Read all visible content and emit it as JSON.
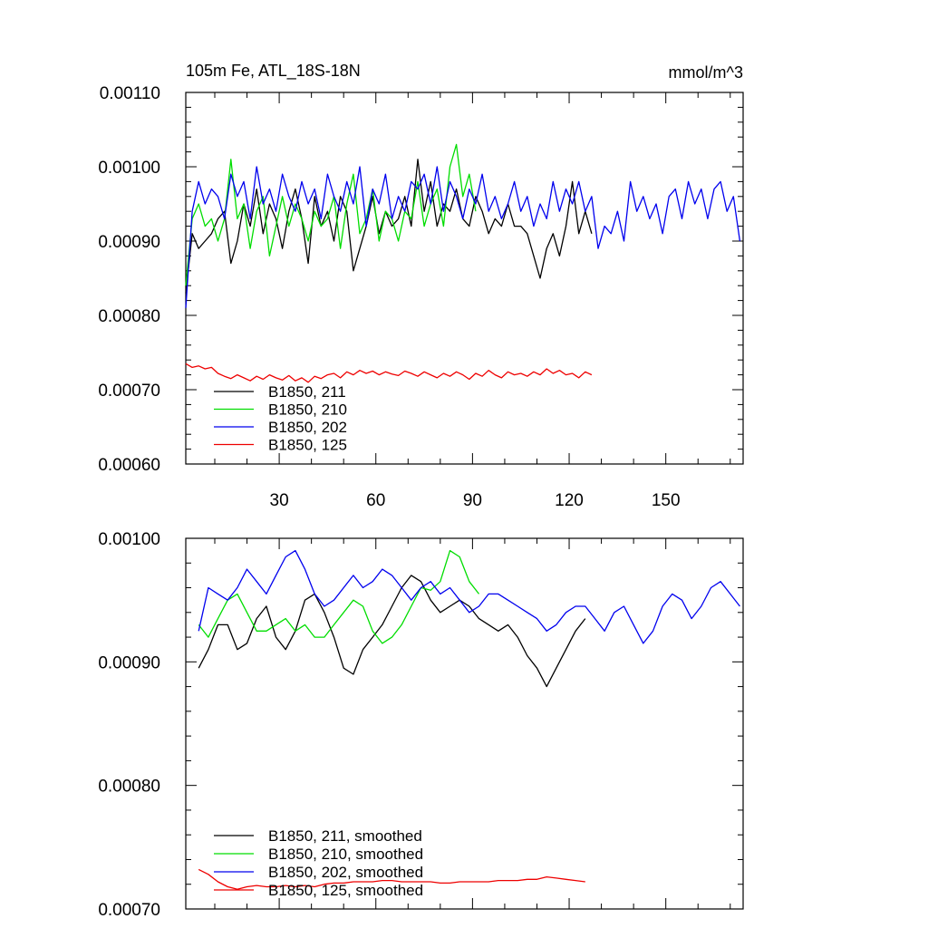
{
  "figure": {
    "title_left": "105m Fe, ATL_18S-18N",
    "title_right": "mmol/m^3"
  },
  "chart_data": [
    {
      "type": "line",
      "title": "105m Fe, ATL_18S-18N",
      "units": "mmol/m^3",
      "xlim": [
        1,
        174
      ],
      "ylim": [
        0.0006,
        0.0011
      ],
      "xticks": [
        30,
        60,
        90,
        120,
        150
      ],
      "xtick_labels": [
        "30",
        "60",
        "90",
        "120",
        "150"
      ],
      "yticks": [
        0.0006,
        0.0007,
        0.0008,
        0.0009,
        0.001,
        0.0011
      ],
      "ytick_labels": [
        "0.00060",
        "0.00070",
        "0.00080",
        "0.00090",
        "0.00100",
        "0.00110"
      ],
      "legend_position": "bottom-left",
      "series": [
        {
          "name": "B1850, 211",
          "color": "#000000",
          "x": [
            1,
            3,
            5,
            7,
            9,
            11,
            13,
            15,
            17,
            19,
            21,
            23,
            25,
            27,
            29,
            31,
            33,
            35,
            37,
            39,
            41,
            43,
            45,
            47,
            49,
            51,
            53,
            55,
            57,
            59,
            61,
            63,
            65,
            67,
            69,
            71,
            73,
            75,
            77,
            79,
            81,
            83,
            85,
            87,
            89,
            91,
            93,
            95,
            97,
            99,
            101,
            103,
            105,
            107,
            109,
            111,
            113,
            115,
            117,
            119,
            121,
            123,
            125,
            127
          ],
          "y": [
            0.00083,
            0.00091,
            0.00089,
            0.0009,
            0.00091,
            0.00093,
            0.00094,
            0.00087,
            0.0009,
            0.00095,
            0.00092,
            0.00097,
            0.00091,
            0.00095,
            0.00093,
            0.00089,
            0.00094,
            0.00097,
            0.00093,
            0.00087,
            0.00096,
            0.00092,
            0.00094,
            0.0009,
            0.00096,
            0.00094,
            0.00086,
            0.00089,
            0.00092,
            0.00096,
            0.00091,
            0.00094,
            0.00092,
            0.00093,
            0.00096,
            0.00092,
            0.00101,
            0.00094,
            0.00098,
            0.00092,
            0.00095,
            0.00094,
            0.00097,
            0.00093,
            0.00092,
            0.00096,
            0.00094,
            0.00091,
            0.00093,
            0.00092,
            0.00095,
            0.00092,
            0.00092,
            0.00091,
            0.00088,
            0.00085,
            0.00089,
            0.00091,
            0.00088,
            0.00092,
            0.00098,
            0.00091,
            0.00094,
            0.00091
          ]
        },
        {
          "name": "B1850, 210",
          "color": "#00dd00",
          "x": [
            1,
            3,
            5,
            7,
            9,
            11,
            13,
            15,
            17,
            19,
            21,
            23,
            25,
            27,
            29,
            31,
            33,
            35,
            37,
            39,
            41,
            43,
            45,
            47,
            49,
            51,
            53,
            55,
            57,
            59,
            61,
            63,
            65,
            67,
            69,
            71,
            73,
            75,
            77,
            79,
            81,
            83,
            85,
            87,
            89,
            91
          ],
          "y": [
            0.00084,
            0.00093,
            0.00095,
            0.00092,
            0.00093,
            0.0009,
            0.00093,
            0.00101,
            0.00093,
            0.00095,
            0.00089,
            0.00094,
            0.00096,
            0.00088,
            0.00092,
            0.00096,
            0.00092,
            0.00095,
            0.00093,
            0.0009,
            0.00094,
            0.00092,
            0.00093,
            0.00096,
            0.00089,
            0.00095,
            0.00099,
            0.00091,
            0.00093,
            0.00097,
            0.0009,
            0.00094,
            0.00093,
            0.0009,
            0.00094,
            0.00093,
            0.00098,
            0.00092,
            0.00095,
            0.00097,
            0.00092,
            0.001,
            0.00103,
            0.00096,
            0.00099,
            0.00094
          ]
        },
        {
          "name": "B1850, 202",
          "color": "#0000ee",
          "x": [
            1,
            3,
            5,
            7,
            9,
            11,
            13,
            15,
            17,
            19,
            21,
            23,
            25,
            27,
            29,
            31,
            33,
            35,
            37,
            39,
            41,
            43,
            45,
            47,
            49,
            51,
            53,
            55,
            57,
            59,
            61,
            63,
            65,
            67,
            69,
            71,
            73,
            75,
            77,
            79,
            81,
            83,
            85,
            87,
            89,
            91,
            93,
            95,
            97,
            99,
            101,
            103,
            105,
            107,
            109,
            111,
            113,
            115,
            117,
            119,
            121,
            123,
            125,
            127,
            129,
            131,
            133,
            135,
            137,
            139,
            141,
            143,
            145,
            147,
            149,
            151,
            153,
            155,
            157,
            159,
            161,
            163,
            165,
            167,
            169,
            171,
            173
          ],
          "y": [
            0.00081,
            0.00094,
            0.00098,
            0.00095,
            0.00097,
            0.00096,
            0.00093,
            0.00099,
            0.00096,
            0.00098,
            0.00093,
            0.001,
            0.00095,
            0.00097,
            0.00094,
            0.00099,
            0.00096,
            0.00094,
            0.00098,
            0.00095,
            0.00097,
            0.00093,
            0.00099,
            0.00096,
            0.00094,
            0.00098,
            0.00095,
            0.001,
            0.00092,
            0.00097,
            0.00095,
            0.00099,
            0.00093,
            0.00096,
            0.00094,
            0.00098,
            0.00097,
            0.00099,
            0.00095,
            0.001,
            0.00094,
            0.00098,
            0.00096,
            0.00093,
            0.00097,
            0.00095,
            0.00099,
            0.00094,
            0.00096,
            0.00093,
            0.00095,
            0.00098,
            0.00094,
            0.00096,
            0.00092,
            0.00095,
            0.00093,
            0.00098,
            0.00094,
            0.00097,
            0.00095,
            0.00098,
            0.00094,
            0.00096,
            0.00089,
            0.00092,
            0.00091,
            0.00094,
            0.0009,
            0.00098,
            0.00094,
            0.00096,
            0.00093,
            0.00095,
            0.00091,
            0.00096,
            0.00097,
            0.00093,
            0.00098,
            0.00095,
            0.00097,
            0.00093,
            0.00097,
            0.00098,
            0.00094,
            0.00096,
            0.0009
          ]
        },
        {
          "name": "B1850, 125",
          "color": "#ee0000",
          "x": [
            1,
            3,
            5,
            7,
            9,
            11,
            13,
            15,
            17,
            19,
            21,
            23,
            25,
            27,
            29,
            31,
            33,
            35,
            37,
            39,
            41,
            43,
            45,
            47,
            49,
            51,
            53,
            55,
            57,
            59,
            61,
            63,
            65,
            67,
            69,
            71,
            73,
            75,
            77,
            79,
            81,
            83,
            85,
            87,
            89,
            91,
            93,
            95,
            97,
            99,
            101,
            103,
            105,
            107,
            109,
            111,
            113,
            115,
            117,
            119,
            121,
            123,
            125,
            127
          ],
          "y": [
            0.000735,
            0.00073,
            0.000732,
            0.000728,
            0.00073,
            0.000722,
            0.000718,
            0.000715,
            0.00072,
            0.000716,
            0.000712,
            0.000718,
            0.000714,
            0.00072,
            0.000716,
            0.000713,
            0.000719,
            0.000712,
            0.000716,
            0.00071,
            0.000718,
            0.000715,
            0.00072,
            0.000722,
            0.000716,
            0.000724,
            0.00072,
            0.000726,
            0.000722,
            0.000725,
            0.00072,
            0.000724,
            0.000721,
            0.000719,
            0.000725,
            0.000722,
            0.000718,
            0.000724,
            0.00072,
            0.000716,
            0.000722,
            0.000718,
            0.000724,
            0.00072,
            0.000714,
            0.000722,
            0.000718,
            0.000726,
            0.00072,
            0.000716,
            0.000724,
            0.00072,
            0.000722,
            0.000718,
            0.000724,
            0.00072,
            0.000728,
            0.000722,
            0.000726,
            0.00072,
            0.000722,
            0.000716,
            0.000724,
            0.00072
          ]
        }
      ]
    },
    {
      "type": "line",
      "xlim": [
        1,
        174
      ],
      "ylim": [
        0.0007,
        0.001
      ],
      "xticks": [
        30,
        60,
        90,
        120,
        150
      ],
      "yticks": [
        0.0007,
        0.0008,
        0.0009,
        0.001
      ],
      "ytick_labels": [
        "0.00070",
        "0.00080",
        "0.00090",
        "0.00100"
      ],
      "legend_position": "bottom-left",
      "series": [
        {
          "name": "B1850, 211, smoothed",
          "color": "#000000",
          "x": [
            5,
            8,
            11,
            14,
            17,
            20,
            23,
            26,
            29,
            32,
            35,
            38,
            41,
            44,
            47,
            50,
            53,
            56,
            59,
            62,
            65,
            68,
            71,
            74,
            77,
            80,
            83,
            86,
            89,
            92,
            95,
            98,
            101,
            104,
            107,
            110,
            113,
            116,
            119,
            122,
            125
          ],
          "y": [
            0.000895,
            0.00091,
            0.00093,
            0.00093,
            0.00091,
            0.000915,
            0.000935,
            0.000945,
            0.00092,
            0.00091,
            0.000925,
            0.00095,
            0.000955,
            0.00094,
            0.00092,
            0.000895,
            0.00089,
            0.00091,
            0.00092,
            0.00093,
            0.000945,
            0.00096,
            0.00097,
            0.000965,
            0.00095,
            0.00094,
            0.000945,
            0.00095,
            0.000945,
            0.000935,
            0.00093,
            0.000925,
            0.00093,
            0.00092,
            0.000905,
            0.000895,
            0.00088,
            0.000895,
            0.00091,
            0.000925,
            0.000935
          ]
        },
        {
          "name": "B1850, 210, smoothed",
          "color": "#00dd00",
          "x": [
            5,
            8,
            11,
            14,
            17,
            20,
            23,
            26,
            29,
            32,
            35,
            38,
            41,
            44,
            47,
            50,
            53,
            56,
            59,
            62,
            65,
            68,
            71,
            74,
            77,
            80,
            83,
            86,
            89,
            92
          ],
          "y": [
            0.00093,
            0.00092,
            0.000935,
            0.00095,
            0.000955,
            0.00094,
            0.000925,
            0.000925,
            0.00093,
            0.000935,
            0.000925,
            0.00093,
            0.00092,
            0.00092,
            0.00093,
            0.00094,
            0.00095,
            0.000945,
            0.000925,
            0.000915,
            0.00092,
            0.00093,
            0.000945,
            0.00096,
            0.000958,
            0.000965,
            0.00099,
            0.000985,
            0.000965,
            0.000955
          ]
        },
        {
          "name": "B1850, 202, smoothed",
          "color": "#0000ee",
          "x": [
            5,
            8,
            11,
            14,
            17,
            20,
            23,
            26,
            29,
            32,
            35,
            38,
            41,
            44,
            47,
            50,
            53,
            56,
            59,
            62,
            65,
            68,
            71,
            74,
            77,
            80,
            83,
            86,
            89,
            92,
            95,
            98,
            101,
            104,
            107,
            110,
            113,
            116,
            119,
            122,
            125,
            128,
            131,
            134,
            137,
            140,
            143,
            146,
            149,
            152,
            155,
            158,
            161,
            164,
            167,
            170,
            173
          ],
          "y": [
            0.000925,
            0.00096,
            0.000955,
            0.00095,
            0.00096,
            0.000975,
            0.000965,
            0.000955,
            0.00097,
            0.000985,
            0.00099,
            0.000975,
            0.000955,
            0.000945,
            0.00095,
            0.00096,
            0.00097,
            0.00096,
            0.000965,
            0.000975,
            0.00097,
            0.00096,
            0.00095,
            0.00096,
            0.000965,
            0.000955,
            0.00096,
            0.00095,
            0.00094,
            0.000945,
            0.000955,
            0.000955,
            0.00095,
            0.000945,
            0.00094,
            0.000935,
            0.000925,
            0.00093,
            0.00094,
            0.000945,
            0.000945,
            0.000935,
            0.000925,
            0.00094,
            0.000945,
            0.00093,
            0.000915,
            0.000925,
            0.000945,
            0.000955,
            0.00095,
            0.000935,
            0.000945,
            0.00096,
            0.000965,
            0.000955,
            0.000945
          ]
        },
        {
          "name": "B1850, 125, smoothed",
          "color": "#ee0000",
          "x": [
            5,
            8,
            11,
            14,
            17,
            20,
            23,
            26,
            29,
            32,
            35,
            38,
            41,
            44,
            47,
            50,
            53,
            56,
            59,
            62,
            65,
            68,
            71,
            74,
            77,
            80,
            83,
            86,
            89,
            92,
            95,
            98,
            101,
            104,
            107,
            110,
            113,
            116,
            119,
            122,
            125
          ],
          "y": [
            0.000732,
            0.000728,
            0.000722,
            0.000718,
            0.000716,
            0.000718,
            0.000719,
            0.000718,
            0.000718,
            0.000719,
            0.000718,
            0.000719,
            0.000718,
            0.00072,
            0.000721,
            0.000721,
            0.000722,
            0.000722,
            0.000722,
            0.000723,
            0.000723,
            0.000722,
            0.000722,
            0.000722,
            0.000722,
            0.000721,
            0.000721,
            0.000722,
            0.000722,
            0.000722,
            0.000722,
            0.000723,
            0.000723,
            0.000723,
            0.000724,
            0.000724,
            0.000726,
            0.000725,
            0.000724,
            0.000723,
            0.000722
          ]
        }
      ]
    }
  ]
}
